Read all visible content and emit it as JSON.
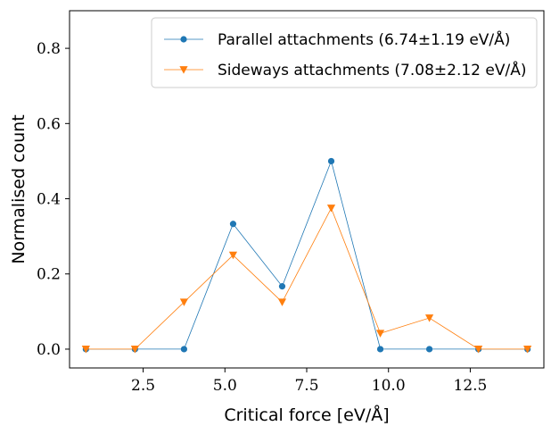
{
  "chart_data": {
    "type": "line",
    "xlabel": "Critical force [eV/Å]",
    "ylabel": "Normalised count",
    "xlim": [
      0.25,
      14.75
    ],
    "ylim": [
      -0.05,
      0.9
    ],
    "xticks": [
      2.5,
      5.0,
      7.5,
      10.0,
      12.5
    ],
    "xtick_labels": [
      "2.5",
      "5.0",
      "7.5",
      "10.0",
      "12.5"
    ],
    "yticks": [
      0.0,
      0.2,
      0.4,
      0.6,
      0.8
    ],
    "ytick_labels": [
      "0.0",
      "0.2",
      "0.4",
      "0.6",
      "0.8"
    ],
    "grid": false,
    "legend_position": "top-right",
    "x": [
      0.75,
      2.25,
      3.75,
      5.25,
      6.75,
      8.25,
      9.75,
      11.25,
      12.75,
      14.25
    ],
    "series": [
      {
        "name": "Parallel attachments (6.74±1.19 eV/Å)",
        "color": "#1f77b4",
        "marker": "circle",
        "values": [
          0.0,
          0.0,
          0.0,
          0.333,
          0.167,
          0.5,
          0.0,
          0.0,
          0.0,
          0.0
        ]
      },
      {
        "name": "Sideways attachments (7.08±2.12 eV/Å)",
        "color": "#ff7f0e",
        "marker": "triangle-down",
        "values": [
          0.0,
          0.0,
          0.125,
          0.25,
          0.125,
          0.375,
          0.042,
          0.083,
          0.0,
          0.0
        ]
      }
    ]
  }
}
